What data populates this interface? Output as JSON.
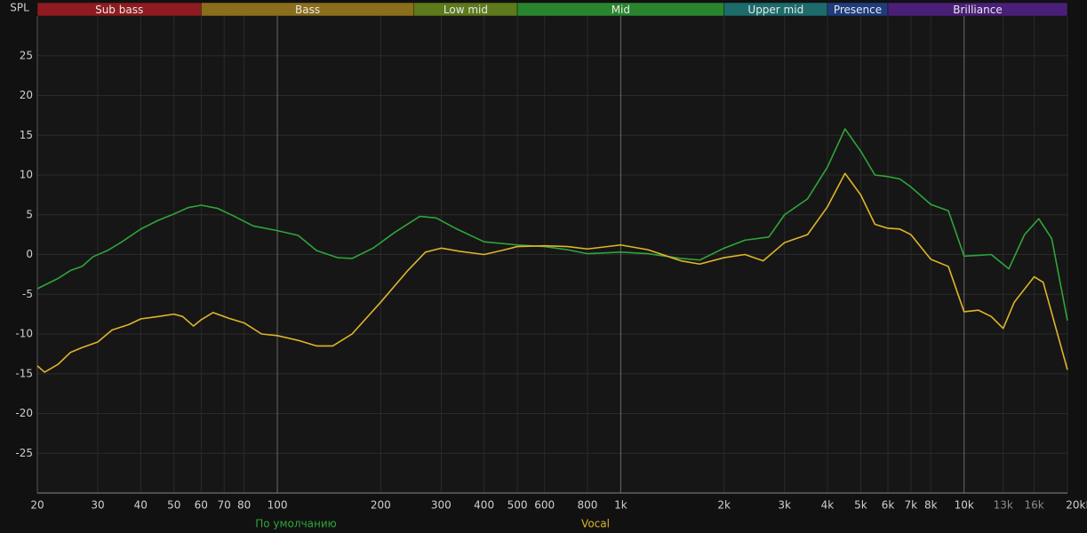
{
  "chart_data": {
    "type": "line",
    "y_label": "SPL",
    "xscale": "log",
    "xlim": [
      20,
      20000
    ],
    "ylim": [
      -30,
      30
    ],
    "yticks": [
      -25,
      -20,
      -15,
      -10,
      -5,
      0,
      5,
      10,
      15,
      20,
      25
    ],
    "xticks": [
      20,
      30,
      40,
      50,
      60,
      70,
      80,
      100,
      200,
      300,
      400,
      500,
      600,
      800,
      {
        "value": 1000,
        "label": "1k"
      },
      {
        "value": 2000,
        "label": "2k"
      },
      {
        "value": 3000,
        "label": "3k"
      },
      {
        "value": 4000,
        "label": "4k"
      },
      {
        "value": 5000,
        "label": "5k"
      },
      {
        "value": 6000,
        "label": "6k"
      },
      {
        "value": 7000,
        "label": "7k"
      },
      {
        "value": 8000,
        "label": "8k"
      },
      {
        "value": 10000,
        "label": "10k"
      },
      {
        "value": 13000,
        "label": "13k"
      },
      {
        "value": 16000,
        "label": "16k"
      },
      {
        "value": 20000,
        "label": "20kHz"
      }
    ],
    "grid": true,
    "bands": [
      {
        "name": "Sub bass",
        "from": 20,
        "to": 60,
        "color": "#8e1b1f"
      },
      {
        "name": "Bass",
        "from": 60,
        "to": 250,
        "color": "#8a6e1c"
      },
      {
        "name": "Low mid",
        "from": 250,
        "to": 500,
        "color": "#5d7a1c"
      },
      {
        "name": "Mid",
        "from": 500,
        "to": 2000,
        "color": "#2a862e"
      },
      {
        "name": "Upper mid",
        "from": 2000,
        "to": 4000,
        "color": "#1d6b6b"
      },
      {
        "name": "Presence",
        "from": 4000,
        "to": 6000,
        "color": "#1f3c7c"
      },
      {
        "name": "Brilliance",
        "from": 6000,
        "to": 20000,
        "color": "#4a1f78"
      }
    ],
    "series": [
      {
        "name": "По умолчанию",
        "color": "#2fa53a",
        "x": [
          20,
          23,
          25,
          27,
          29,
          32,
          35,
          40,
          45,
          50,
          55,
          60,
          67,
          75,
          85,
          100,
          115,
          130,
          150,
          165,
          190,
          220,
          260,
          290,
          330,
          400,
          500,
          600,
          700,
          800,
          900,
          1000,
          1200,
          1500,
          1700,
          2000,
          2300,
          2700,
          3000,
          3500,
          4000,
          4500,
          5000,
          5500,
          6000,
          6500,
          7000,
          8000,
          9000,
          10000,
          11000,
          12000,
          13500,
          15000,
          16500,
          18000,
          20000
        ],
        "values": [
          -4.3,
          -3,
          -2,
          -1.5,
          -0.3,
          0.5,
          1.5,
          3.2,
          4.3,
          5.1,
          5.9,
          6.2,
          5.8,
          4.8,
          3.6,
          3,
          2.4,
          0.5,
          -0.4,
          -0.5,
          0.8,
          2.8,
          4.8,
          4.6,
          3.3,
          1.6,
          1.2,
          1,
          0.6,
          0.1,
          0.2,
          0.3,
          0.1,
          -0.5,
          -0.7,
          0.8,
          1.8,
          2.2,
          5,
          7,
          11,
          15.8,
          13,
          10,
          9.8,
          9.5,
          8.5,
          6.3,
          5.5,
          -0.2,
          -0.1,
          0,
          -1.8,
          2.5,
          4.5,
          2,
          -8.3
        ]
      },
      {
        "name": "Vocal",
        "color": "#e0b42a",
        "x": [
          20,
          21,
          23,
          25,
          27,
          30,
          33,
          37,
          40,
          45,
          50,
          53,
          57,
          60,
          65,
          72,
          80,
          90,
          100,
          115,
          130,
          145,
          165,
          200,
          240,
          270,
          300,
          340,
          400,
          450,
          500,
          600,
          700,
          800,
          1000,
          1200,
          1500,
          1700,
          2000,
          2300,
          2600,
          3000,
          3500,
          4000,
          4500,
          5000,
          5500,
          6000,
          6500,
          7000,
          8000,
          9000,
          10000,
          11000,
          12000,
          13000,
          14000,
          16000,
          17000,
          20000
        ],
        "values": [
          -14,
          -14.8,
          -13.8,
          -12.3,
          -11.7,
          -11,
          -9.5,
          -8.8,
          -8.1,
          -7.8,
          -7.5,
          -7.8,
          -9,
          -8.2,
          -7.3,
          -8,
          -8.6,
          -10,
          -10.2,
          -10.8,
          -11.5,
          -11.5,
          -10,
          -6,
          -2,
          0.3,
          0.8,
          0.4,
          0,
          0.5,
          1,
          1.1,
          1,
          0.7,
          1.2,
          0.6,
          -0.8,
          -1.2,
          -0.4,
          0,
          -0.8,
          1.5,
          2.5,
          6,
          10.2,
          7.5,
          3.8,
          3.3,
          3.2,
          2.5,
          -0.6,
          -1.5,
          -7.2,
          -7,
          -7.8,
          -9.3,
          -6,
          -2.8,
          -3.5,
          -14.5
        ]
      }
    ]
  }
}
